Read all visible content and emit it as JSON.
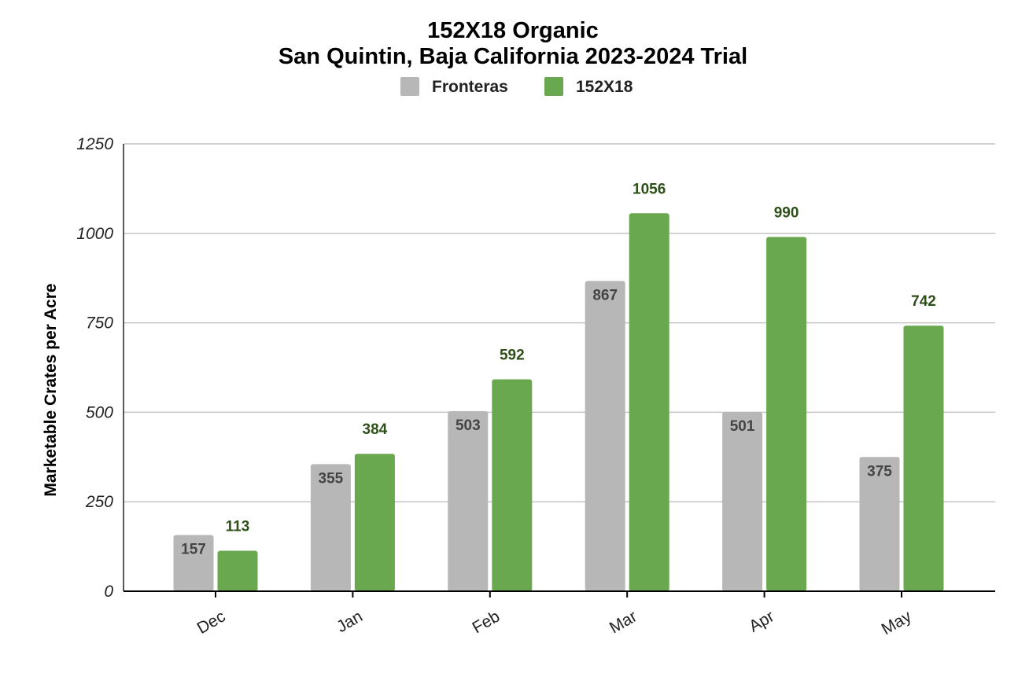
{
  "chart_data": {
    "type": "bar",
    "title_line1": "152X18 Organic",
    "title_line2": "San Quintin, Baja California 2023-2024 Trial",
    "xlabel": "",
    "ylabel": "Marketable Crates per Acre",
    "categories": [
      "Dec",
      "Jan",
      "Feb",
      "Mar",
      "Apr",
      "May"
    ],
    "series": [
      {
        "name": "Fronteras",
        "color": "#b7b7b7",
        "values": [
          157,
          355,
          503,
          867,
          501,
          375
        ]
      },
      {
        "name": "152X18",
        "color": "#6aa84f",
        "values": [
          113,
          384,
          592,
          1056,
          990,
          742
        ]
      }
    ],
    "ylim": [
      0,
      1250
    ],
    "yticks": [
      0,
      250,
      500,
      750,
      1000,
      1250
    ],
    "grid": true,
    "legend": "top-center",
    "data_labels": true
  }
}
